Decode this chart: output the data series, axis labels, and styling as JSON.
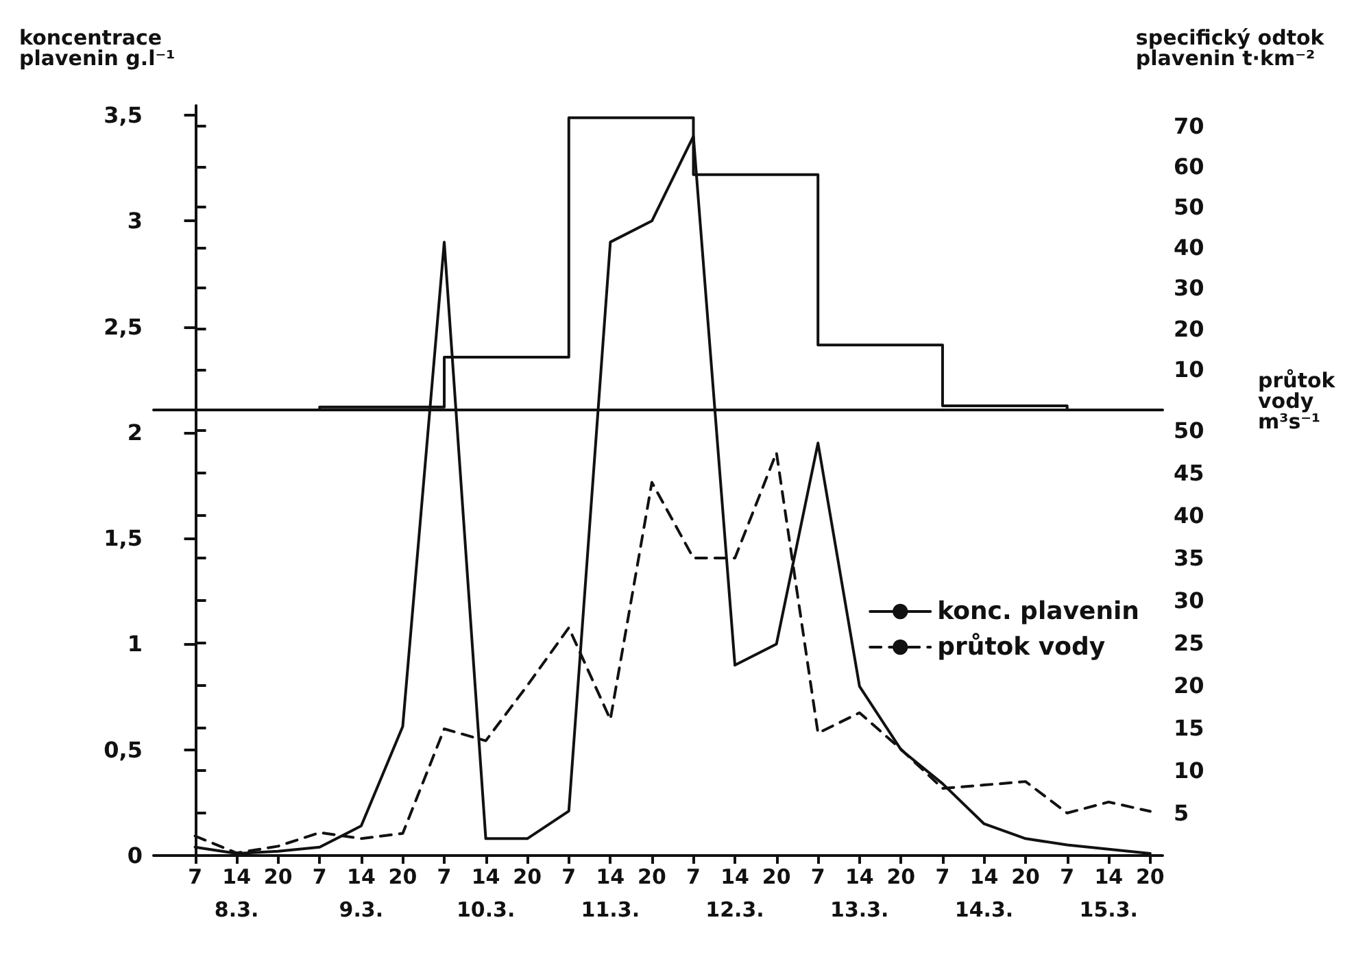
{
  "chart_data": {
    "type": "line",
    "ylabel": "koncentrace plavenin g.l⁻¹",
    "y2label": "průtok vody m³s⁻¹",
    "y3label": "specifický odtok plavenin t·km⁻²",
    "categories": [
      "7",
      "14",
      "20",
      "7",
      "14",
      "20",
      "7",
      "14",
      "20",
      "7",
      "14",
      "20",
      "7",
      "14",
      "20",
      "7",
      "14",
      "20",
      "7",
      "14",
      "20",
      "7",
      "14",
      "20"
    ],
    "annotations": [
      "8.3.",
      "9.3.",
      "10.3.",
      "11.3.",
      "12.3.",
      "13.3.",
      "14.3.",
      "15.3."
    ],
    "series": [
      {
        "name": "konc. plavenin",
        "color": "#111111",
        "line_style": "solid",
        "values": [
          0.04,
          0.01,
          0.02,
          0.04,
          0.14,
          0.61,
          2.9,
          0.08,
          0.08,
          0.21,
          2.9,
          3.0,
          3.4,
          0.9,
          1.0,
          1.95,
          0.8,
          0.5,
          0.34,
          0.15,
          0.08,
          0.05,
          0.03,
          0.01
        ]
      },
      {
        "name": "průtok vody",
        "color": "#111111",
        "line_style": "dashed",
        "axis": "y2",
        "values": [
          2.3,
          0.3,
          1.1,
          2.7,
          2.0,
          2.6,
          14.9,
          13.5,
          20,
          26.8,
          16,
          43.9,
          35,
          35,
          47.4,
          14.4,
          16.8,
          12.5,
          7.9,
          8.3,
          8.7,
          5,
          6.3,
          5.2
        ]
      },
      {
        "type": "step",
        "color": "#111111",
        "line_style": "solid",
        "axis": "y3",
        "values": [
          0,
          0,
          0,
          0.7,
          0.7,
          0.7,
          13,
          13,
          13,
          72,
          72,
          72,
          58,
          58,
          58,
          16,
          16,
          16,
          1,
          1,
          1,
          0,
          0,
          0
        ]
      }
    ],
    "ylim": [
      0,
      3.5
    ],
    "yticks": [
      0,
      {
        "value": 0.5,
        "label": "0,5"
      },
      1,
      {
        "value": 1.5,
        "label": "1,5"
      },
      2,
      {
        "value": 2.5,
        "label": "2,5"
      },
      3,
      {
        "value": 3.5,
        "label": "3,5"
      }
    ],
    "y2lim": [
      0,
      50
    ],
    "y2ticks": [
      5,
      10,
      15,
      20,
      25,
      30,
      35,
      40,
      45,
      50
    ],
    "y3lim": [
      0,
      75
    ],
    "y3ticks": [
      10,
      20,
      30,
      40,
      50,
      60,
      70
    ],
    "grid": false,
    "legend": "right",
    "marker": "none"
  }
}
